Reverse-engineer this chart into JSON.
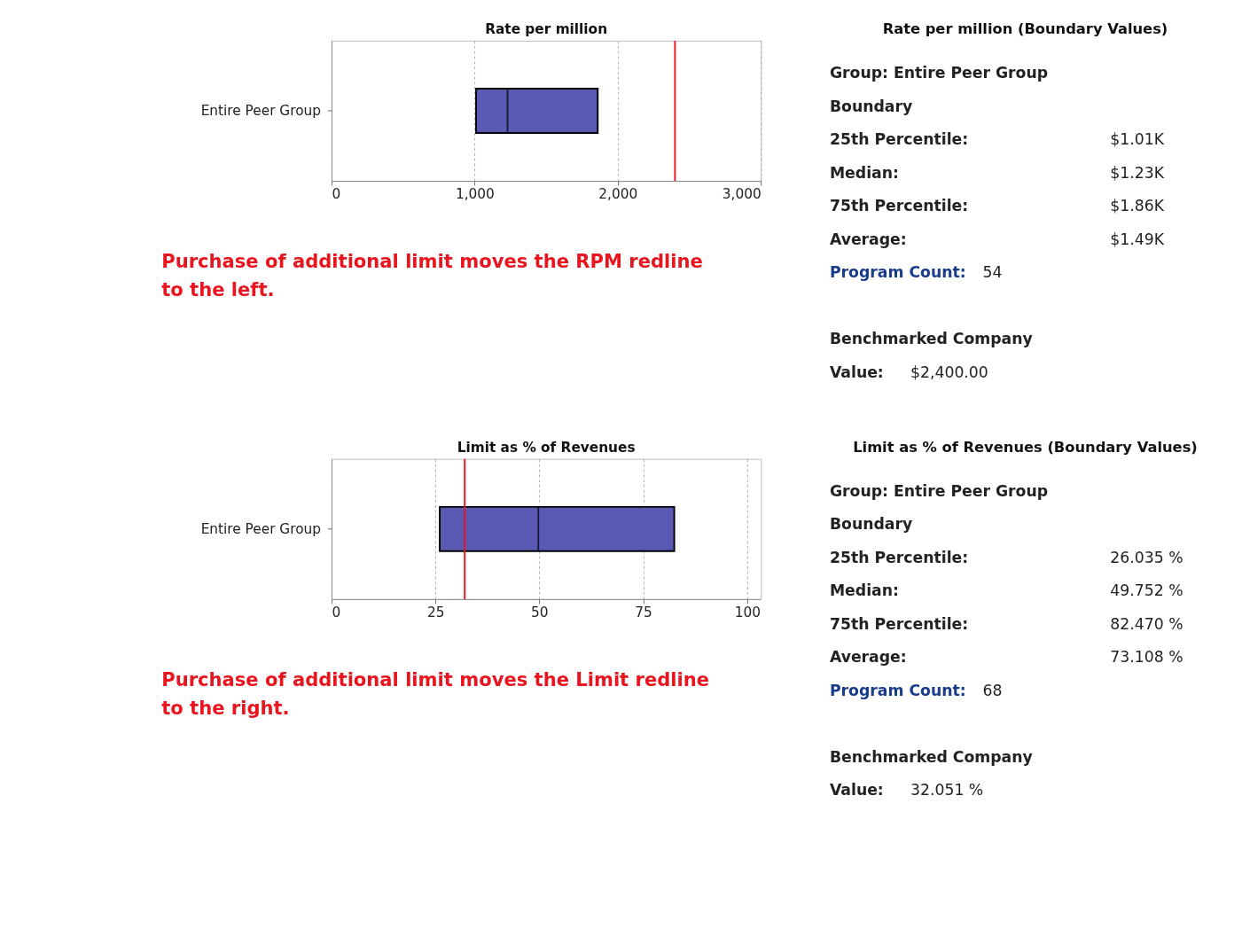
{
  "chart_data": [
    {
      "type": "box",
      "title": "Rate per million",
      "orientation": "horizontal",
      "categories": [
        "Entire Peer Group"
      ],
      "boxes": [
        {
          "low": 1010,
          "q1": 1010,
          "median": 1230,
          "q3": 1860,
          "high": 1860
        }
      ],
      "color": "#5a5ab4",
      "xlim": [
        0,
        3000
      ],
      "xticks": [
        0,
        {
          "value": 1000,
          "label": "1,000"
        },
        {
          "value": 2000,
          "label": "2,000"
        },
        {
          "value": 3000,
          "label": "3,000"
        }
      ],
      "grid": "x",
      "ref_lines": [
        {
          "axis": "x",
          "value": 2400,
          "color": "#e8141e"
        }
      ],
      "annotations": [
        "Purchase of additional limit moves the RPM redline to the left."
      ]
    },
    {
      "type": "other",
      "title": "Rate per million (Boundary Values)",
      "annotations": [
        "Group: Entire Peer Group",
        "Boundary",
        "25th Percentile:",
        "$1.01K",
        "Median:",
        "$1.23K",
        "75th Percentile:",
        "$1.86K",
        "Average:",
        "$1.49K",
        "Program Count:",
        "54",
        "Benchmarked Company",
        "Value:",
        "$2,400.00"
      ]
    },
    {
      "type": "box",
      "title": "Limit as % of Revenues",
      "orientation": "horizontal",
      "categories": [
        "Entire Peer Group"
      ],
      "boxes": [
        {
          "low": 26.035,
          "q1": 26.035,
          "median": 49.752,
          "q3": 82.47,
          "high": 82.47
        }
      ],
      "color": "#5a5ab4",
      "xlim": [
        0,
        103.3
      ],
      "xticks": [
        0,
        25,
        50,
        75,
        100
      ],
      "grid": "x",
      "ref_lines": [
        {
          "axis": "x",
          "value": 32.051,
          "color": "#e8141e"
        }
      ],
      "annotations": [
        "Purchase of additional limit moves the Limit redline to the right."
      ]
    },
    {
      "type": "other",
      "title": "Limit as % of Revenues (Boundary Values)",
      "annotations": [
        "Group: Entire Peer Group",
        "Boundary",
        "25th Percentile:",
        "26.035 %",
        "Median:",
        "49.752 %",
        "75th Percentile:",
        "82.470 %",
        "Average:",
        "73.108 %",
        "Program Count:",
        "68",
        "Benchmarked Company",
        "Value:",
        "32.051 %"
      ]
    }
  ]
}
